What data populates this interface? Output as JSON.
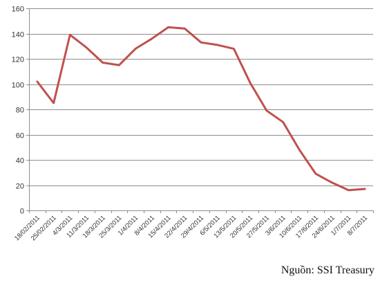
{
  "chart_data": {
    "type": "line",
    "title": "",
    "xlabel": "",
    "ylabel": "",
    "ylim": [
      0,
      160
    ],
    "yticks": [
      0,
      20,
      40,
      60,
      80,
      100,
      120,
      140,
      160
    ],
    "grid": "horizontal",
    "legend": "none",
    "line_color": "#C0504D",
    "categories": [
      "18/02/2011",
      "25/02/2011",
      "4/3/2011",
      "11/3/2011",
      "18/3/2011",
      "25/3/2011",
      "1/4/2011",
      "8/4/2011",
      "15/4/2011",
      "22/4/2011",
      "29/4/2011",
      "6/5/2011",
      "13/5/2011",
      "20/5/2011",
      "27/5/2011",
      "3/6/2011",
      "10/6/2011",
      "17/6/2011",
      "24/6/2011",
      "1/7/2011",
      "8/7/2011"
    ],
    "series": [
      {
        "values": [
          102,
          85,
          139,
          129,
          117,
          115,
          128,
          136,
          145,
          144,
          133,
          131,
          128,
          101,
          79,
          70,
          48,
          29,
          22,
          16,
          17
        ]
      }
    ]
  },
  "source_note": "Nguồn: SSI Treasury"
}
